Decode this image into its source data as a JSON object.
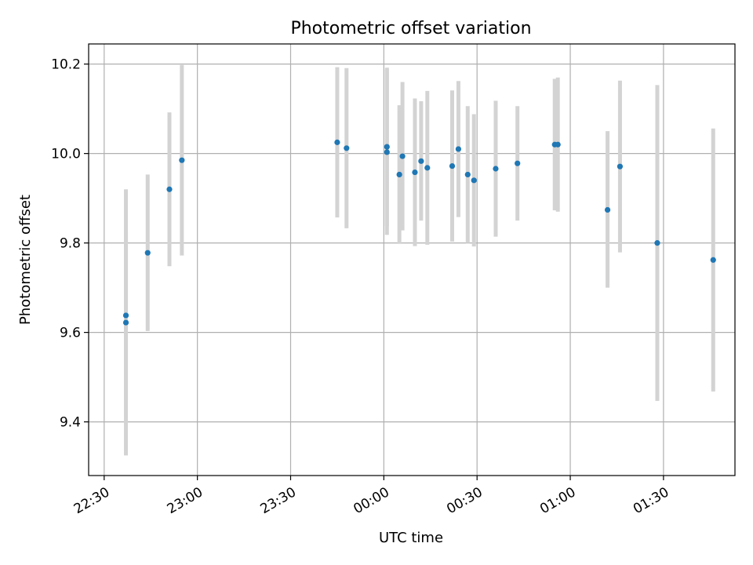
{
  "chart_data": {
    "type": "scatter",
    "title": "Photometric offset variation",
    "xlabel": "UTC time",
    "ylabel": "Photometric offset",
    "x_axis_kind": "time",
    "xlim": [
      "22:25",
      "01:53"
    ],
    "ylim": [
      9.28,
      10.245
    ],
    "grid": true,
    "x_ticks": [
      {
        "value": "22:30",
        "label": "22:30"
      },
      {
        "value": "23:00",
        "label": "23:00"
      },
      {
        "value": "23:30",
        "label": "23:30"
      },
      {
        "value": "00:00",
        "label": "00:00"
      },
      {
        "value": "00:30",
        "label": "00:30"
      },
      {
        "value": "01:00",
        "label": "01:00"
      },
      {
        "value": "01:30",
        "label": "01:30"
      }
    ],
    "y_ticks": [
      {
        "value": 9.4,
        "label": "9.4"
      },
      {
        "value": 9.6,
        "label": "9.6"
      },
      {
        "value": 9.8,
        "label": "9.8"
      },
      {
        "value": 10.0,
        "label": "10.0"
      },
      {
        "value": 10.2,
        "label": "10.2"
      }
    ],
    "colors": {
      "points": "#1f77b4",
      "error_bars": "#d3d3d3"
    },
    "points": [
      {
        "x": "22:37",
        "y": 9.622,
        "low": 9.325,
        "high": 9.92
      },
      {
        "x": "22:37",
        "y": 9.638,
        "low": 9.45,
        "high": 9.83
      },
      {
        "x": "22:44",
        "y": 9.778,
        "low": 9.603,
        "high": 9.953
      },
      {
        "x": "22:51",
        "y": 9.92,
        "low": 9.748,
        "high": 10.092
      },
      {
        "x": "22:55",
        "y": 9.985,
        "low": 9.772,
        "high": 10.198
      },
      {
        "x": "23:45",
        "y": 10.025,
        "low": 9.857,
        "high": 10.193
      },
      {
        "x": "23:48",
        "y": 10.012,
        "low": 9.833,
        "high": 10.191
      },
      {
        "x": "00:01",
        "y": 10.015,
        "low": 9.838,
        "high": 10.192
      },
      {
        "x": "00:01",
        "y": 10.003,
        "low": 9.818,
        "high": 10.188
      },
      {
        "x": "00:05",
        "y": 9.953,
        "low": 9.798,
        "high": 10.108
      },
      {
        "x": "00:06",
        "y": 9.994,
        "low": 9.828,
        "high": 10.16
      },
      {
        "x": "00:10",
        "y": 9.958,
        "low": 9.793,
        "high": 10.123
      },
      {
        "x": "00:12",
        "y": 9.983,
        "low": 9.85,
        "high": 10.117
      },
      {
        "x": "00:14",
        "y": 9.968,
        "low": 9.796,
        "high": 10.14
      },
      {
        "x": "00:22",
        "y": 9.972,
        "low": 9.803,
        "high": 10.141
      },
      {
        "x": "00:24",
        "y": 10.01,
        "low": 9.858,
        "high": 10.162
      },
      {
        "x": "00:27",
        "y": 9.953,
        "low": 9.8,
        "high": 10.106
      },
      {
        "x": "00:29",
        "y": 9.94,
        "low": 9.792,
        "high": 10.088
      },
      {
        "x": "00:36",
        "y": 9.966,
        "low": 9.814,
        "high": 10.118
      },
      {
        "x": "00:43",
        "y": 9.978,
        "low": 9.85,
        "high": 10.106
      },
      {
        "x": "00:55",
        "y": 10.02,
        "low": 9.873,
        "high": 10.167
      },
      {
        "x": "00:56",
        "y": 10.02,
        "low": 9.87,
        "high": 10.17
      },
      {
        "x": "01:12",
        "y": 9.874,
        "low": 9.7,
        "high": 10.05
      },
      {
        "x": "01:16",
        "y": 9.971,
        "low": 9.779,
        "high": 10.163
      },
      {
        "x": "01:28",
        "y": 9.8,
        "low": 9.447,
        "high": 10.153
      },
      {
        "x": "01:46",
        "y": 9.762,
        "low": 9.468,
        "high": 10.056
      }
    ]
  }
}
